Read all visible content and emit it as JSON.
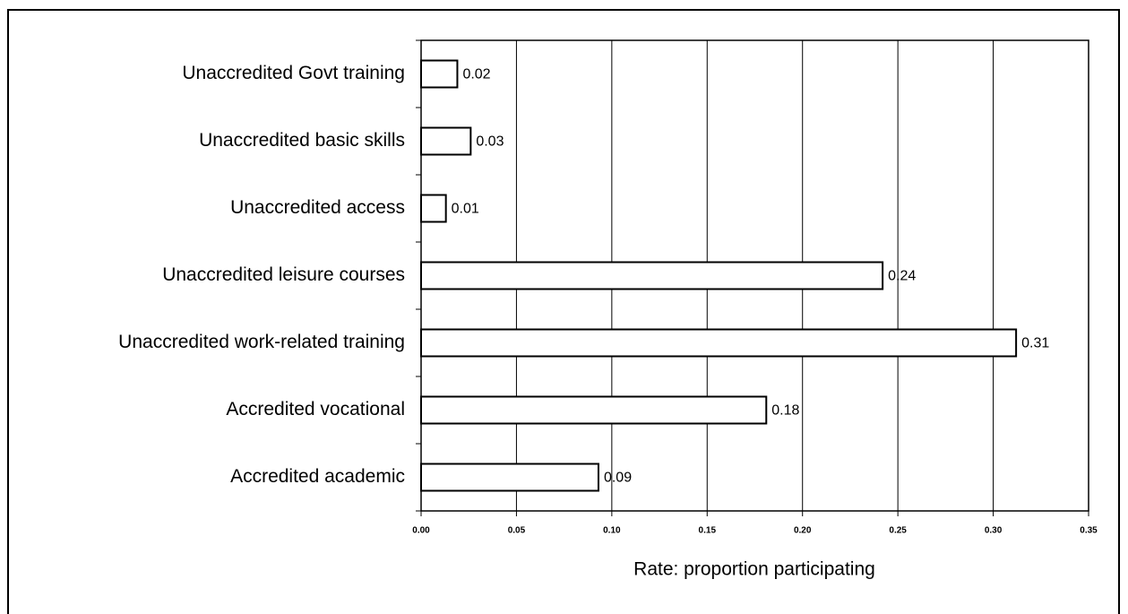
{
  "chart_data": {
    "type": "barh",
    "x_label": "Rate: proportion participating",
    "categories": [
      "Unaccredited Govt training",
      "Unaccredited basic skills",
      "Unaccredited access",
      "Unaccredited leisure courses",
      "Unaccredited work-related training",
      "Accredited vocational",
      "Accredited academic"
    ],
    "values": [
      0.019,
      0.026,
      0.013,
      0.242,
      0.312,
      0.181,
      0.093
    ],
    "value_labels": [
      "0.02",
      "0.03",
      "0.01",
      "0.24",
      "0.31",
      "0.18",
      "0.09"
    ],
    "color": "#ffffff",
    "xlim": [
      0,
      0.35
    ],
    "xticks": [
      {
        "value": 0,
        "label": "0.00"
      },
      {
        "value": 0.05,
        "label": "0.05"
      },
      {
        "value": 0.1,
        "label": "0.10"
      },
      {
        "value": 0.15,
        "label": "0.15"
      },
      {
        "value": 0.2,
        "label": "0.20"
      },
      {
        "value": 0.25,
        "label": "0.25"
      },
      {
        "value": 0.3,
        "label": "0.30"
      },
      {
        "value": 0.35,
        "label": "0.35"
      }
    ],
    "grid": true
  }
}
